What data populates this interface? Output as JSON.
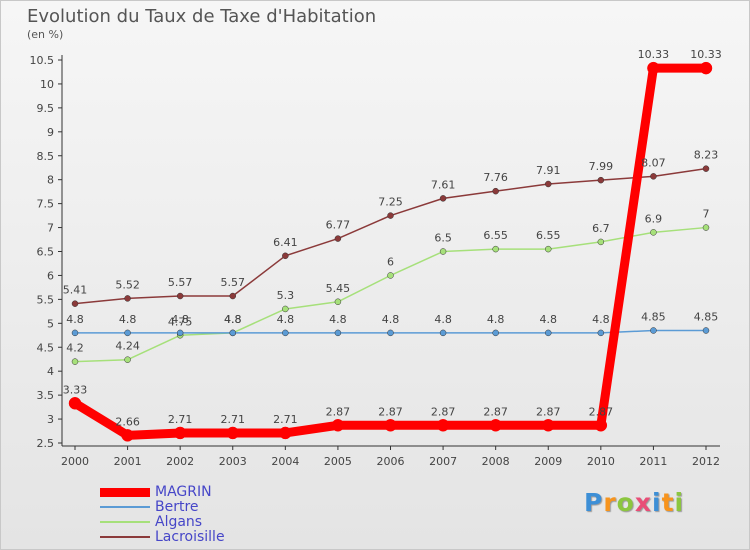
{
  "chart_data": {
    "type": "line",
    "title": "Evolution du Taux de Taxe d'Habitation",
    "subtitle": "(en %)",
    "x": [
      "2000",
      "2001",
      "2002",
      "2003",
      "2004",
      "2005",
      "2006",
      "2007",
      "2008",
      "2009",
      "2010",
      "2011",
      "2012"
    ],
    "ylim": [
      2.5,
      10.5
    ],
    "yticks": [
      "2.5",
      "3",
      "3.5",
      "4",
      "4.5",
      "5",
      "5.5",
      "6",
      "6.5",
      "7",
      "7.5",
      "8",
      "8.5",
      "9",
      "9.5",
      "10",
      "10.5"
    ],
    "grid": false,
    "legend_position": "bottom-left",
    "series": [
      {
        "name": "MAGRIN",
        "color": "#ff0000",
        "width": 9,
        "values": [
          3.33,
          2.66,
          2.71,
          2.71,
          2.71,
          2.87,
          2.87,
          2.87,
          2.87,
          2.87,
          2.87,
          10.33,
          10.33
        ],
        "labels": [
          "3.33",
          "2.66",
          "2.71",
          "2.71",
          "2.71",
          "2.87",
          "2.87",
          "2.87",
          "2.87",
          "2.87",
          "2.87",
          "10.33",
          "10.33"
        ]
      },
      {
        "name": "Bertre",
        "color": "#5b9bd5",
        "width": 1.5,
        "values": [
          4.8,
          4.8,
          4.8,
          4.8,
          4.8,
          4.8,
          4.8,
          4.8,
          4.8,
          4.8,
          4.8,
          4.85,
          4.85
        ],
        "labels": [
          "4.8",
          "4.8",
          "4.8",
          "4.8",
          "4.8",
          "4.8",
          "4.8",
          "4.8",
          "4.8",
          "4.8",
          "4.8",
          "4.85",
          "4.85"
        ]
      },
      {
        "name": "Algans",
        "color": "#a6e07a",
        "width": 1.5,
        "values": [
          4.2,
          4.24,
          4.75,
          4.8,
          5.3,
          5.45,
          6.0,
          6.5,
          6.55,
          6.55,
          6.7,
          6.9,
          7.0
        ],
        "labels": [
          "4.2",
          "4.24",
          "4.75",
          "4.8",
          "5.3",
          "5.45",
          "6",
          "6.5",
          "6.55",
          "6.55",
          "6.7",
          "6.9",
          "7"
        ]
      },
      {
        "name": "Lacroisille",
        "color": "#8b3a3a",
        "width": 1.5,
        "values": [
          5.41,
          5.52,
          5.57,
          5.57,
          6.41,
          6.77,
          7.25,
          7.61,
          7.76,
          7.91,
          7.99,
          8.07,
          8.23
        ],
        "labels": [
          "5.41",
          "5.52",
          "5.57",
          "5.57",
          "6.41",
          "6.77",
          "7.25",
          "7.61",
          "7.76",
          "7.91",
          "7.99",
          "8.07",
          "8.23"
        ]
      }
    ]
  },
  "logo": {
    "letters": [
      "P",
      "r",
      "o",
      "x",
      "i",
      "t",
      "i"
    ],
    "colors": [
      "#3d8fd6",
      "#f7941d",
      "#8cc63f",
      "#e94e77",
      "#3d8fd6",
      "#f7941d",
      "#8cc63f"
    ]
  }
}
